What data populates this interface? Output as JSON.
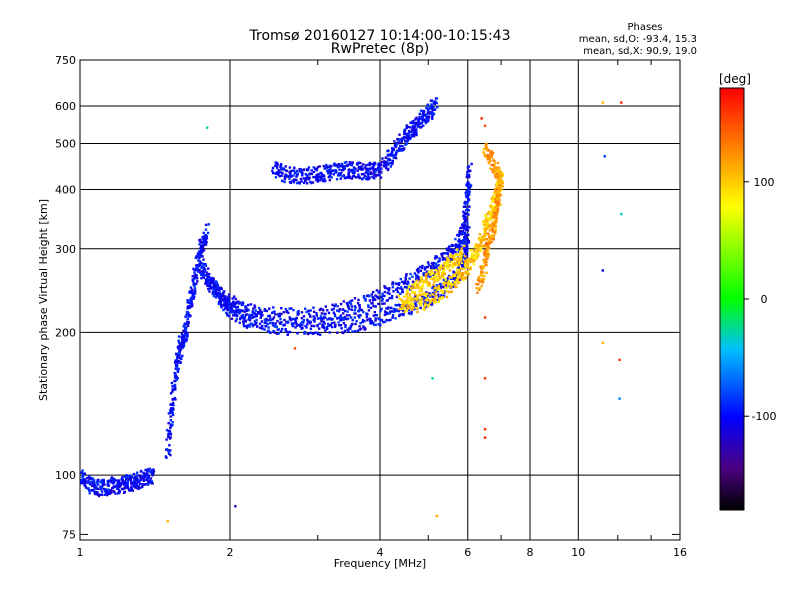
{
  "chart_data": {
    "type": "scatter",
    "title": "Tromsø 20160127 10:14:00-10:15:43",
    "subtitle": "RwPretec (8p)",
    "xlabel": "Frequency [MHz]",
    "ylabel": "Stationary phase Virtual Height [km]",
    "x_scale": "log2",
    "y_scale": "log",
    "xlim": [
      1,
      16
    ],
    "ylim": [
      73,
      750
    ],
    "x_ticks": [
      1,
      2,
      4,
      6,
      8,
      10,
      16
    ],
    "x_tick_labels": [
      "1",
      "2",
      "4",
      "6",
      "8",
      "10",
      "16"
    ],
    "y_ticks": [
      75,
      100,
      200,
      300,
      400,
      500,
      600,
      750
    ],
    "y_tick_labels": [
      "75",
      "100",
      "200",
      "300",
      "400",
      "500",
      "600",
      "750"
    ],
    "grid": true,
    "phases_box": {
      "title": "Phases",
      "line_o": "mean, sd,O: -93.4, 15.3",
      "line_x": "mean, sd,X:  90.9, 19.0"
    },
    "colorbar": {
      "label": "[deg]",
      "range": [
        -180,
        180
      ],
      "ticks": [
        100,
        0,
        -100
      ],
      "tick_labels": [
        "100",
        "0",
        "-100"
      ]
    },
    "traces": [
      {
        "name": "",
        "phase": -100,
        "points": [
          [
            1.0,
            100
          ],
          [
            1.05,
            95
          ],
          [
            1.1,
            94
          ],
          [
            1.15,
            95
          ],
          [
            1.2,
            95
          ],
          [
            1.25,
            96
          ],
          [
            1.3,
            97
          ],
          [
            1.35,
            99
          ],
          [
            1.4,
            100
          ]
        ]
      },
      {
        "name": "",
        "phase": -100,
        "points": [
          [
            1.5,
            110
          ],
          [
            1.53,
            140
          ],
          [
            1.56,
            170
          ],
          [
            1.6,
            190
          ],
          [
            1.63,
            200
          ],
          [
            1.66,
            230
          ],
          [
            1.7,
            260
          ],
          [
            1.75,
            300
          ],
          [
            1.8,
            330
          ]
        ]
      },
      {
        "name": "",
        "phase": -100,
        "points": [
          [
            1.75,
            275
          ],
          [
            1.8,
            262
          ],
          [
            1.85,
            250
          ],
          [
            1.9,
            240
          ],
          [
            2.0,
            230
          ],
          [
            2.1,
            223
          ],
          [
            2.3,
            218
          ],
          [
            2.6,
            216
          ],
          [
            3.0,
            218
          ],
          [
            3.4,
            224
          ],
          [
            3.8,
            232
          ],
          [
            4.2,
            243
          ],
          [
            4.6,
            257
          ],
          [
            5.0,
            270
          ],
          [
            5.4,
            285
          ],
          [
            5.7,
            300
          ],
          [
            5.9,
            330
          ],
          [
            6.0,
            380
          ],
          [
            6.05,
            440
          ]
        ]
      },
      {
        "name": "",
        "phase": -100,
        "points": [
          [
            1.9,
            240
          ],
          [
            2.0,
            222
          ],
          [
            2.2,
            212
          ],
          [
            2.5,
            206
          ],
          [
            2.9,
            205
          ],
          [
            3.3,
            206
          ],
          [
            3.7,
            210
          ],
          [
            4.1,
            216
          ],
          [
            4.5,
            224
          ],
          [
            4.9,
            233
          ],
          [
            5.3,
            245
          ],
          [
            5.7,
            262
          ],
          [
            5.95,
            290
          ],
          [
            6.0,
            330
          ]
        ]
      },
      {
        "name": "",
        "phase": -100,
        "points": [
          [
            2.45,
            440
          ],
          [
            2.6,
            430
          ],
          [
            2.8,
            428
          ],
          [
            3.0,
            430
          ],
          [
            3.2,
            436
          ],
          [
            3.4,
            440
          ],
          [
            3.6,
            438
          ],
          [
            3.8,
            436
          ],
          [
            4.0,
            440
          ],
          [
            4.2,
            470
          ],
          [
            4.4,
            500
          ],
          [
            4.6,
            530
          ],
          [
            4.8,
            555
          ],
          [
            5.0,
            580
          ],
          [
            5.2,
            610
          ]
        ]
      },
      {
        "name": "",
        "phase": 100,
        "points": [
          [
            4.4,
            230
          ],
          [
            4.7,
            245
          ],
          [
            5.0,
            258
          ],
          [
            5.3,
            270
          ],
          [
            5.6,
            280
          ],
          [
            5.9,
            295
          ]
        ]
      },
      {
        "name": "",
        "phase": 100,
        "points": [
          [
            4.5,
            225
          ],
          [
            4.9,
            232
          ],
          [
            5.3,
            242
          ],
          [
            5.7,
            258
          ],
          [
            6.0,
            275
          ],
          [
            6.3,
            300
          ],
          [
            6.5,
            330
          ],
          [
            6.7,
            360
          ],
          [
            6.9,
            400
          ],
          [
            7.0,
            430
          ]
        ]
      },
      {
        "name": "",
        "phase": 120,
        "points": [
          [
            6.3,
            250
          ],
          [
            6.5,
            280
          ],
          [
            6.6,
            310
          ],
          [
            6.8,
            340
          ],
          [
            6.9,
            380
          ],
          [
            7.0,
            420
          ],
          [
            6.7,
            460
          ],
          [
            6.5,
            490
          ]
        ]
      }
    ],
    "scatter_points": [
      {
        "x": 11.2,
        "y": 610,
        "phase": 110
      },
      {
        "x": 12.2,
        "y": 610,
        "phase": 170
      },
      {
        "x": 11.3,
        "y": 470,
        "phase": -80
      },
      {
        "x": 12.2,
        "y": 355,
        "phase": -30
      },
      {
        "x": 11.2,
        "y": 270,
        "phase": -100
      },
      {
        "x": 11.2,
        "y": 190,
        "phase": 110
      },
      {
        "x": 12.1,
        "y": 175,
        "phase": 160
      },
      {
        "x": 12.1,
        "y": 145,
        "phase": -60
      },
      {
        "x": 6.5,
        "y": 215,
        "phase": 160
      },
      {
        "x": 6.5,
        "y": 160,
        "phase": 160
      },
      {
        "x": 6.5,
        "y": 125,
        "phase": 160
      },
      {
        "x": 6.5,
        "y": 120,
        "phase": 170
      },
      {
        "x": 5.2,
        "y": 82,
        "phase": 110
      },
      {
        "x": 5.1,
        "y": 160,
        "phase": -20
      },
      {
        "x": 2.7,
        "y": 185,
        "phase": 150
      },
      {
        "x": 1.5,
        "y": 80,
        "phase": 110
      },
      {
        "x": 2.05,
        "y": 86,
        "phase": -120
      },
      {
        "x": 1.8,
        "y": 540,
        "phase": -20
      },
      {
        "x": 6.4,
        "y": 565,
        "phase": 170
      },
      {
        "x": 6.5,
        "y": 545,
        "phase": 150
      }
    ]
  }
}
